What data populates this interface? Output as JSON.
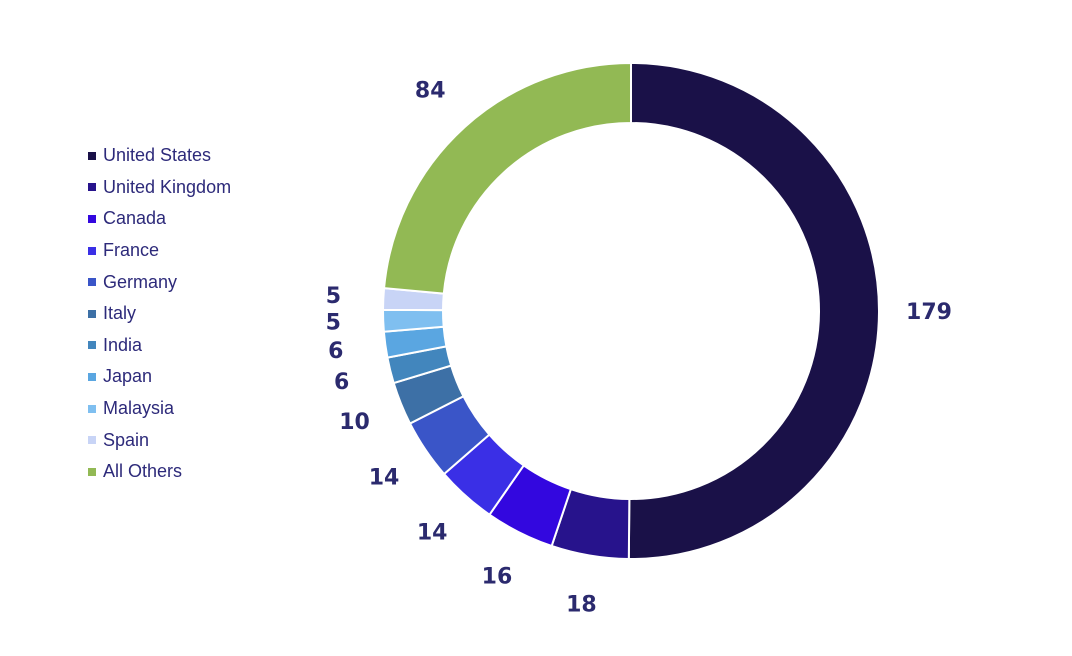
{
  "chart_data": {
    "type": "pie",
    "style": "donut",
    "title": "",
    "legend_position": "left",
    "slices": [
      {
        "label": "United States",
        "value": 179,
        "color": "#1a1148"
      },
      {
        "label": "United Kingdom",
        "value": 18,
        "color": "#27138c"
      },
      {
        "label": "Canada",
        "value": 16,
        "color": "#3307df"
      },
      {
        "label": "France",
        "value": 14,
        "color": "#3a2fe6"
      },
      {
        "label": "Germany",
        "value": 14,
        "color": "#3a55c8"
      },
      {
        "label": "Italy",
        "value": 10,
        "color": "#3d70a6"
      },
      {
        "label": "India",
        "value": 6,
        "color": "#4286bd"
      },
      {
        "label": "Japan",
        "value": 6,
        "color": "#5aa6e1"
      },
      {
        "label": "Malaysia",
        "value": 5,
        "color": "#7fbff0"
      },
      {
        "label": "Spain",
        "value": 5,
        "color": "#c8d4f6"
      },
      {
        "label": "All Others",
        "value": 84,
        "color": "#92b954"
      }
    ]
  }
}
